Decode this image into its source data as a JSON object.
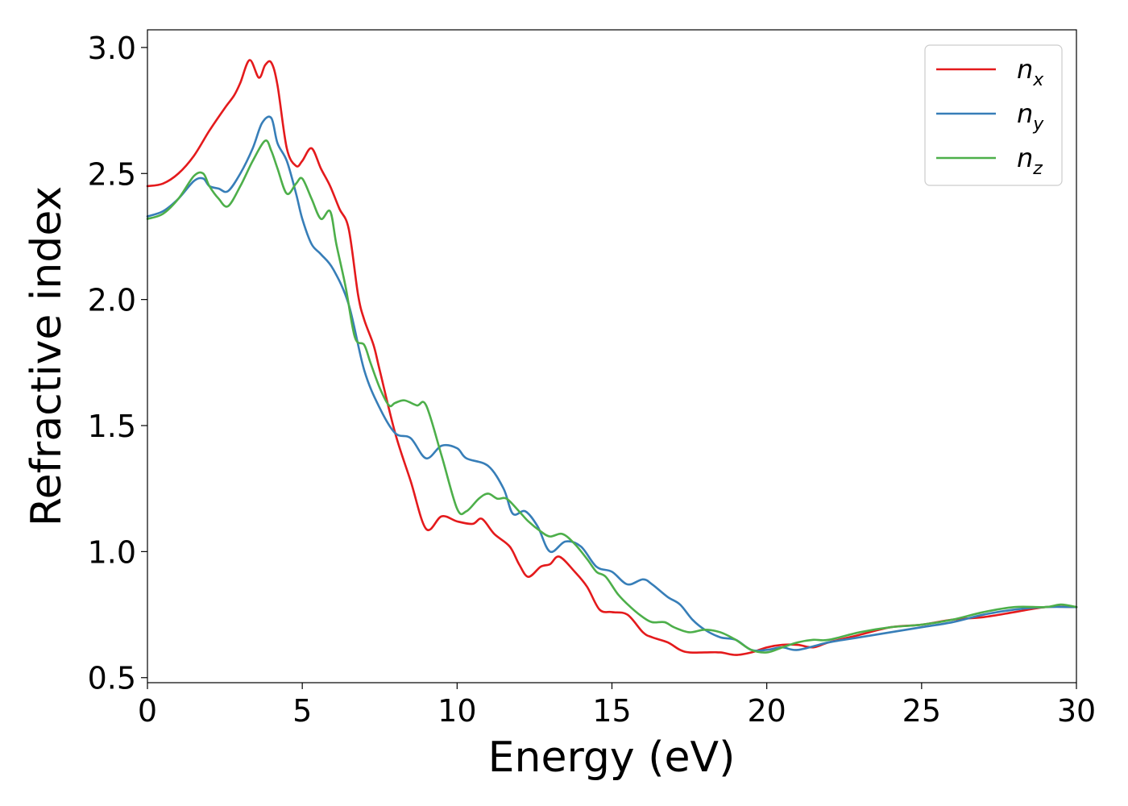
{
  "chart_data": {
    "type": "line",
    "title": "",
    "xlabel": "Energy (eV)",
    "ylabel": "Refractive index",
    "xlim": [
      0,
      30
    ],
    "ylim": [
      0.48,
      3.07
    ],
    "xticks": [
      0,
      5,
      10,
      15,
      20,
      25,
      30
    ],
    "xtick_labels": [
      "0",
      "5",
      "10",
      "15",
      "20",
      "25",
      "30"
    ],
    "yticks": [
      0.5,
      1.0,
      1.5,
      2.0,
      2.5,
      3.0
    ],
    "ytick_labels": [
      "0.5",
      "1.0",
      "1.5",
      "2.0",
      "2.5",
      "3.0"
    ],
    "grid": false,
    "legend_position": "top-right",
    "series": [
      {
        "name": "n",
        "subscript": "x",
        "color": "#e41a1c",
        "x": [
          0,
          0.5,
          1.0,
          1.5,
          2.0,
          2.5,
          2.8,
          3.0,
          3.3,
          3.6,
          3.8,
          4.0,
          4.2,
          4.5,
          4.8,
          5.0,
          5.3,
          5.6,
          5.9,
          6.2,
          6.5,
          6.8,
          7.0,
          7.3,
          7.5,
          8.0,
          8.5,
          9.0,
          9.5,
          10.0,
          10.5,
          10.8,
          11.2,
          11.7,
          12.0,
          12.3,
          12.7,
          13.0,
          13.3,
          13.8,
          14.2,
          14.6,
          15.0,
          15.5,
          16.0,
          16.3,
          16.8,
          17.2,
          17.5,
          18.0,
          18.5,
          19.0,
          19.5,
          20.0,
          20.5,
          21.0,
          21.5,
          22.0,
          23.0,
          24.0,
          25.0,
          26.0,
          27.0,
          28.0,
          29.0,
          30.0
        ],
        "y": [
          2.45,
          2.46,
          2.5,
          2.57,
          2.67,
          2.76,
          2.81,
          2.86,
          2.95,
          2.88,
          2.93,
          2.94,
          2.85,
          2.6,
          2.53,
          2.55,
          2.6,
          2.52,
          2.45,
          2.36,
          2.28,
          2.02,
          1.92,
          1.82,
          1.72,
          1.47,
          1.28,
          1.09,
          1.14,
          1.12,
          1.11,
          1.13,
          1.07,
          1.02,
          0.95,
          0.9,
          0.94,
          0.95,
          0.98,
          0.92,
          0.86,
          0.77,
          0.76,
          0.75,
          0.68,
          0.66,
          0.64,
          0.61,
          0.6,
          0.6,
          0.6,
          0.59,
          0.6,
          0.62,
          0.63,
          0.63,
          0.62,
          0.64,
          0.67,
          0.7,
          0.71,
          0.73,
          0.74,
          0.76,
          0.78,
          0.78
        ]
      },
      {
        "name": "n",
        "subscript": "y",
        "color": "#377eb8",
        "x": [
          0,
          0.5,
          1.0,
          1.5,
          1.8,
          2.0,
          2.3,
          2.6,
          3.0,
          3.4,
          3.7,
          4.0,
          4.2,
          4.5,
          4.8,
          5.0,
          5.3,
          5.6,
          6.0,
          6.5,
          7.0,
          7.5,
          8.0,
          8.5,
          9.0,
          9.5,
          10.0,
          10.3,
          11.0,
          11.5,
          11.8,
          12.2,
          12.6,
          13.0,
          13.5,
          14.0,
          14.5,
          15.0,
          15.5,
          16.0,
          16.3,
          16.8,
          17.2,
          17.6,
          18.0,
          18.5,
          19.0,
          19.5,
          20.0,
          20.5,
          21.0,
          22.0,
          23.0,
          24.0,
          25.0,
          26.0,
          27.0,
          28.0,
          29.0,
          30.0
        ],
        "y": [
          2.33,
          2.35,
          2.4,
          2.47,
          2.48,
          2.45,
          2.44,
          2.43,
          2.5,
          2.6,
          2.7,
          2.72,
          2.62,
          2.55,
          2.42,
          2.32,
          2.22,
          2.18,
          2.12,
          1.98,
          1.72,
          1.57,
          1.47,
          1.45,
          1.37,
          1.42,
          1.41,
          1.37,
          1.34,
          1.25,
          1.15,
          1.16,
          1.1,
          1.0,
          1.04,
          1.02,
          0.94,
          0.92,
          0.87,
          0.89,
          0.87,
          0.82,
          0.79,
          0.73,
          0.69,
          0.66,
          0.65,
          0.61,
          0.61,
          0.62,
          0.61,
          0.64,
          0.66,
          0.68,
          0.7,
          0.72,
          0.75,
          0.77,
          0.78,
          0.78
        ]
      },
      {
        "name": "n",
        "subscript": "z",
        "color": "#4daf4a",
        "x": [
          0,
          0.5,
          1.0,
          1.5,
          1.8,
          2.0,
          2.3,
          2.6,
          3.0,
          3.4,
          3.8,
          4.0,
          4.2,
          4.5,
          4.8,
          5.0,
          5.3,
          5.6,
          5.9,
          6.1,
          6.4,
          6.7,
          7.0,
          7.2,
          7.5,
          7.8,
          8.0,
          8.3,
          8.7,
          9.0,
          9.5,
          10.0,
          10.3,
          10.7,
          11.0,
          11.3,
          11.6,
          12.0,
          12.3,
          12.7,
          13.0,
          13.4,
          13.8,
          14.2,
          14.5,
          14.8,
          15.2,
          15.6,
          16.0,
          16.3,
          16.7,
          17.0,
          17.5,
          18.0,
          18.5,
          19.0,
          19.5,
          20.0,
          20.5,
          21.0,
          21.5,
          22.0,
          23.0,
          24.0,
          25.0,
          26.0,
          27.0,
          28.0,
          29.0,
          29.5,
          30.0
        ],
        "y": [
          2.32,
          2.34,
          2.4,
          2.49,
          2.5,
          2.45,
          2.4,
          2.37,
          2.45,
          2.55,
          2.63,
          2.59,
          2.52,
          2.42,
          2.46,
          2.48,
          2.4,
          2.32,
          2.35,
          2.22,
          2.05,
          1.85,
          1.82,
          1.75,
          1.65,
          1.58,
          1.59,
          1.6,
          1.58,
          1.58,
          1.38,
          1.17,
          1.16,
          1.21,
          1.23,
          1.21,
          1.21,
          1.16,
          1.12,
          1.08,
          1.06,
          1.07,
          1.03,
          0.97,
          0.92,
          0.9,
          0.83,
          0.78,
          0.74,
          0.72,
          0.72,
          0.7,
          0.68,
          0.69,
          0.68,
          0.65,
          0.61,
          0.6,
          0.62,
          0.64,
          0.65,
          0.65,
          0.68,
          0.7,
          0.71,
          0.73,
          0.76,
          0.78,
          0.78,
          0.79,
          0.78
        ]
      }
    ]
  }
}
